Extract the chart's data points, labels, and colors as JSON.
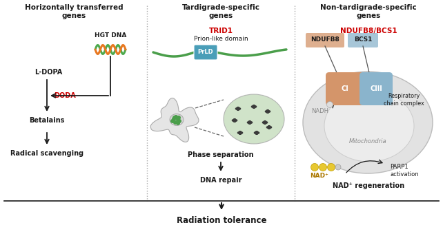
{
  "title": "Radiation tolerance",
  "panel1_title": "Horizontally transferred\ngenes",
  "panel2_title": "Tardigrade-specific\ngenes",
  "panel3_title": "Non-tardigrade-specific\ngenes",
  "panel2_red": "TRID1",
  "panel2_subtitle": "Prion-like domain",
  "panel3_red": "NDUFB8/BCS1",
  "bg_color": "#ffffff",
  "black": "#1a1a1a",
  "red": "#cc0000",
  "green_dna1": "#4daa4d",
  "orange_dna": "#e87820",
  "gray_dna": "#bbbbbb",
  "preld_green": "#4a9e4a",
  "preld_box": "#4a9eb8",
  "droplet_fill": "#c8dfc0",
  "ndufb8_fill": "#d4956a",
  "bcs1_fill": "#8ab4cc",
  "nad_yellow": "#e8c830",
  "separator_color": "#aaaaaa",
  "p1x": 107,
  "p2x": 320,
  "p3x": 534,
  "sep1x": 213,
  "sep2x": 427
}
